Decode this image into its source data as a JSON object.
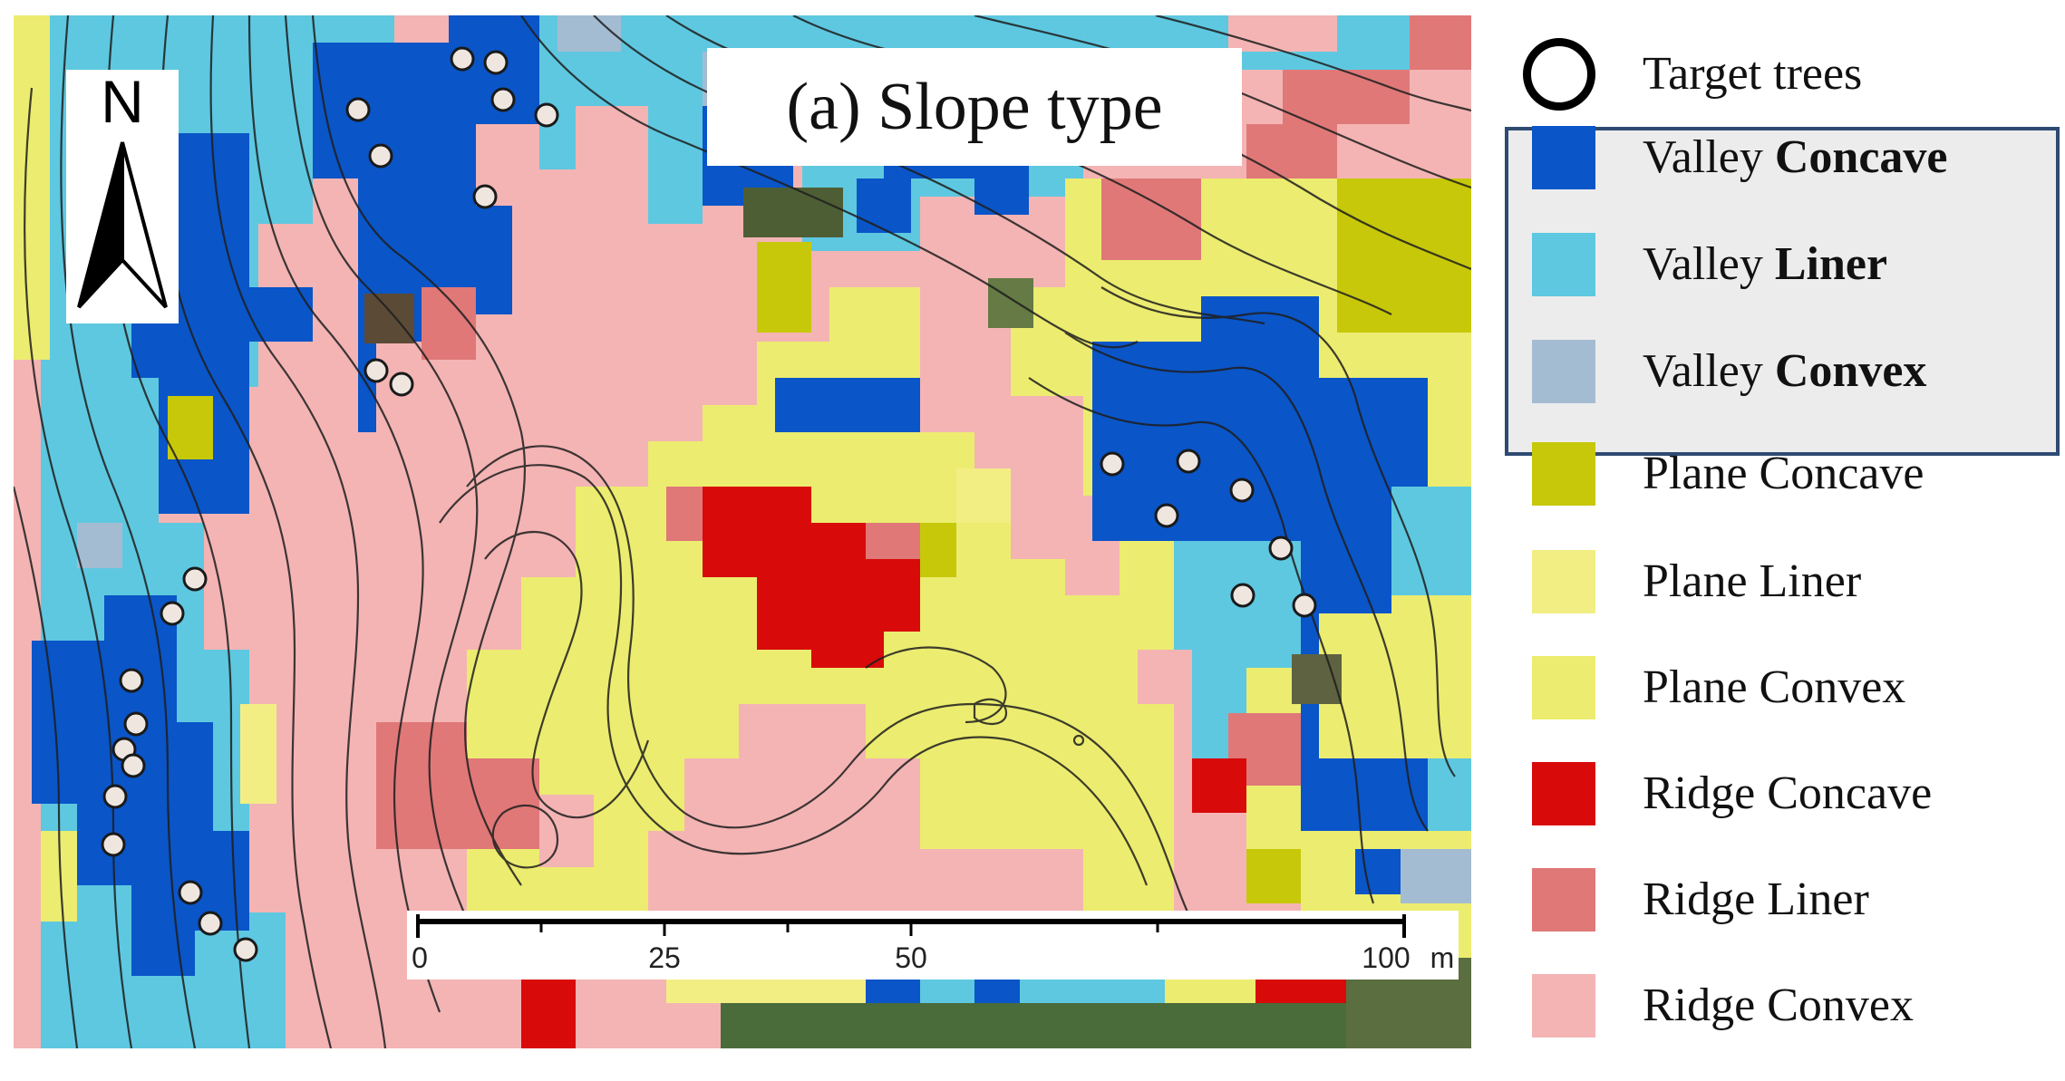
{
  "map": {
    "title": "(a) Slope type",
    "north_label": "N",
    "scale": {
      "ticks": [
        "0",
        "25",
        "50",
        "100"
      ],
      "unit": "m"
    }
  },
  "legend": {
    "target_label": "Target trees",
    "items": [
      {
        "prefix": "Valley",
        "suffix": "Concave",
        "bold": true,
        "color": "#0a55c8"
      },
      {
        "prefix": "Valley",
        "suffix": "Liner",
        "bold": true,
        "color": "#5ec8e0"
      },
      {
        "prefix": "Valley",
        "suffix": "Convex",
        "bold": true,
        "color": "#a4bcd2"
      },
      {
        "prefix": "Plane",
        "suffix": "Concave",
        "bold": false,
        "color": "#c7c80a"
      },
      {
        "prefix": "Plane",
        "suffix": "Liner",
        "bold": false,
        "color": "#f2ee84"
      },
      {
        "prefix": "Plane",
        "suffix": "Convex",
        "bold": false,
        "color": "#ecec70"
      },
      {
        "prefix": "Ridge",
        "suffix": "Concave",
        "bold": false,
        "color": "#d80a0a"
      },
      {
        "prefix": "Ridge",
        "suffix": "Liner",
        "bold": false,
        "color": "#e07878"
      },
      {
        "prefix": "Ridge",
        "suffix": "Convex",
        "bold": false,
        "color": "#f4b4b4"
      }
    ]
  }
}
